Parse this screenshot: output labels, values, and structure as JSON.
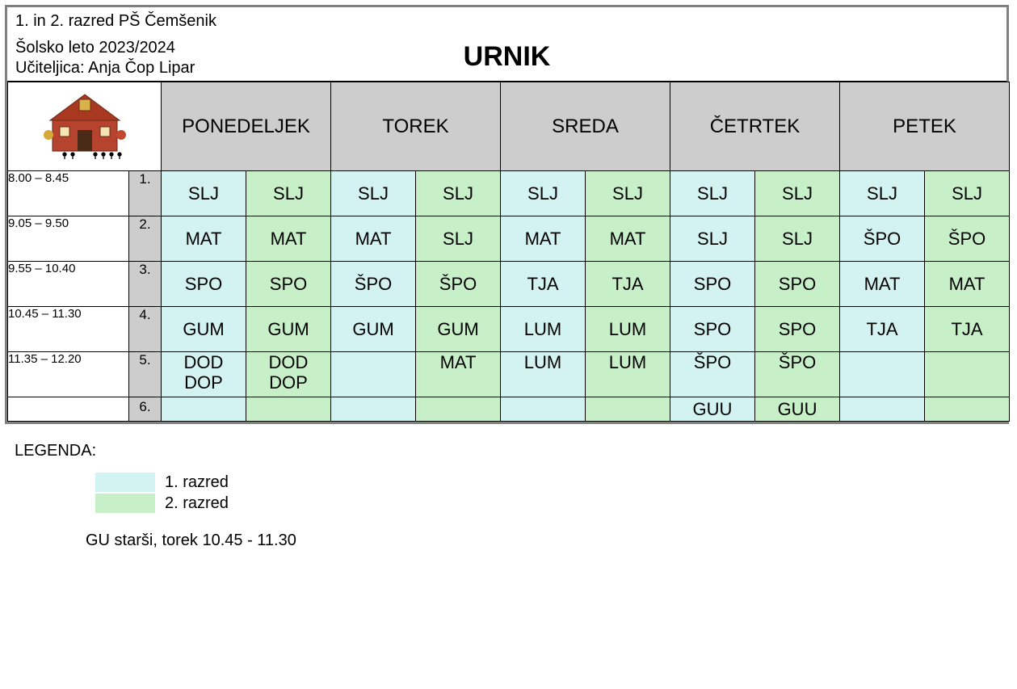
{
  "header": {
    "line1": "1. in 2. razred PŠ Čemšenik",
    "line2": "Šolsko leto 2023/2024",
    "line3": "Učiteljica: Anja Čop Lipar",
    "title": "URNIK"
  },
  "days": [
    "PONEDELJEK",
    "TOREK",
    "SREDA",
    "ČETRTEK",
    "PETEK"
  ],
  "colors": {
    "class1": "#d3f2f2",
    "class2": "#c8f0c8",
    "day_header_bg": "#cdcdcd",
    "border": "#000000",
    "outer_border": "#808080"
  },
  "rows": [
    {
      "time": "8.00 – 8.45",
      "idx": "1.",
      "cells": [
        [
          "SLJ",
          "SLJ"
        ],
        [
          "SLJ",
          "SLJ"
        ],
        [
          "SLJ",
          "SLJ"
        ],
        [
          "SLJ",
          "SLJ"
        ],
        [
          "SLJ",
          "SLJ"
        ]
      ]
    },
    {
      "time": "9.05 – 9.50",
      "idx": "2.",
      "cells": [
        [
          "MAT",
          "MAT"
        ],
        [
          "MAT",
          "SLJ"
        ],
        [
          "MAT",
          "MAT"
        ],
        [
          "SLJ",
          "SLJ"
        ],
        [
          "ŠPO",
          "ŠPO"
        ]
      ]
    },
    {
      "time": "9.55 – 10.40",
      "idx": "3.",
      "cells": [
        [
          "SPO",
          "SPO"
        ],
        [
          "ŠPO",
          "ŠPO"
        ],
        [
          "TJA",
          "TJA"
        ],
        [
          "SPO",
          "SPO"
        ],
        [
          "MAT",
          "MAT"
        ]
      ]
    },
    {
      "time": "10.45 – 11.30",
      "idx": "4.",
      "cells": [
        [
          "GUM",
          "GUM"
        ],
        [
          "GUM",
          "GUM"
        ],
        [
          "LUM",
          "LUM"
        ],
        [
          "SPO",
          "SPO"
        ],
        [
          "TJA",
          "TJA"
        ]
      ]
    },
    {
      "time": "11.35 – 12.20",
      "idx": "5.",
      "cells": [
        [
          "DOD\nDOP",
          "DOD\nDOP"
        ],
        [
          "",
          "MAT"
        ],
        [
          "LUM",
          "LUM"
        ],
        [
          "ŠPO",
          "ŠPO"
        ],
        [
          "",
          ""
        ]
      ]
    },
    {
      "time": "",
      "idx": "6.",
      "cells": [
        [
          "",
          ""
        ],
        [
          "",
          ""
        ],
        [
          "",
          ""
        ],
        [
          "GUU",
          "GUU"
        ],
        [
          "",
          ""
        ]
      ]
    }
  ],
  "legend": {
    "title": "LEGENDA:",
    "items": [
      {
        "color_key": "class1",
        "label": "1. razred"
      },
      {
        "color_key": "class2",
        "label": "2. razred"
      }
    ]
  },
  "footnote": "GU starši, torek 10.45 - 11.30"
}
